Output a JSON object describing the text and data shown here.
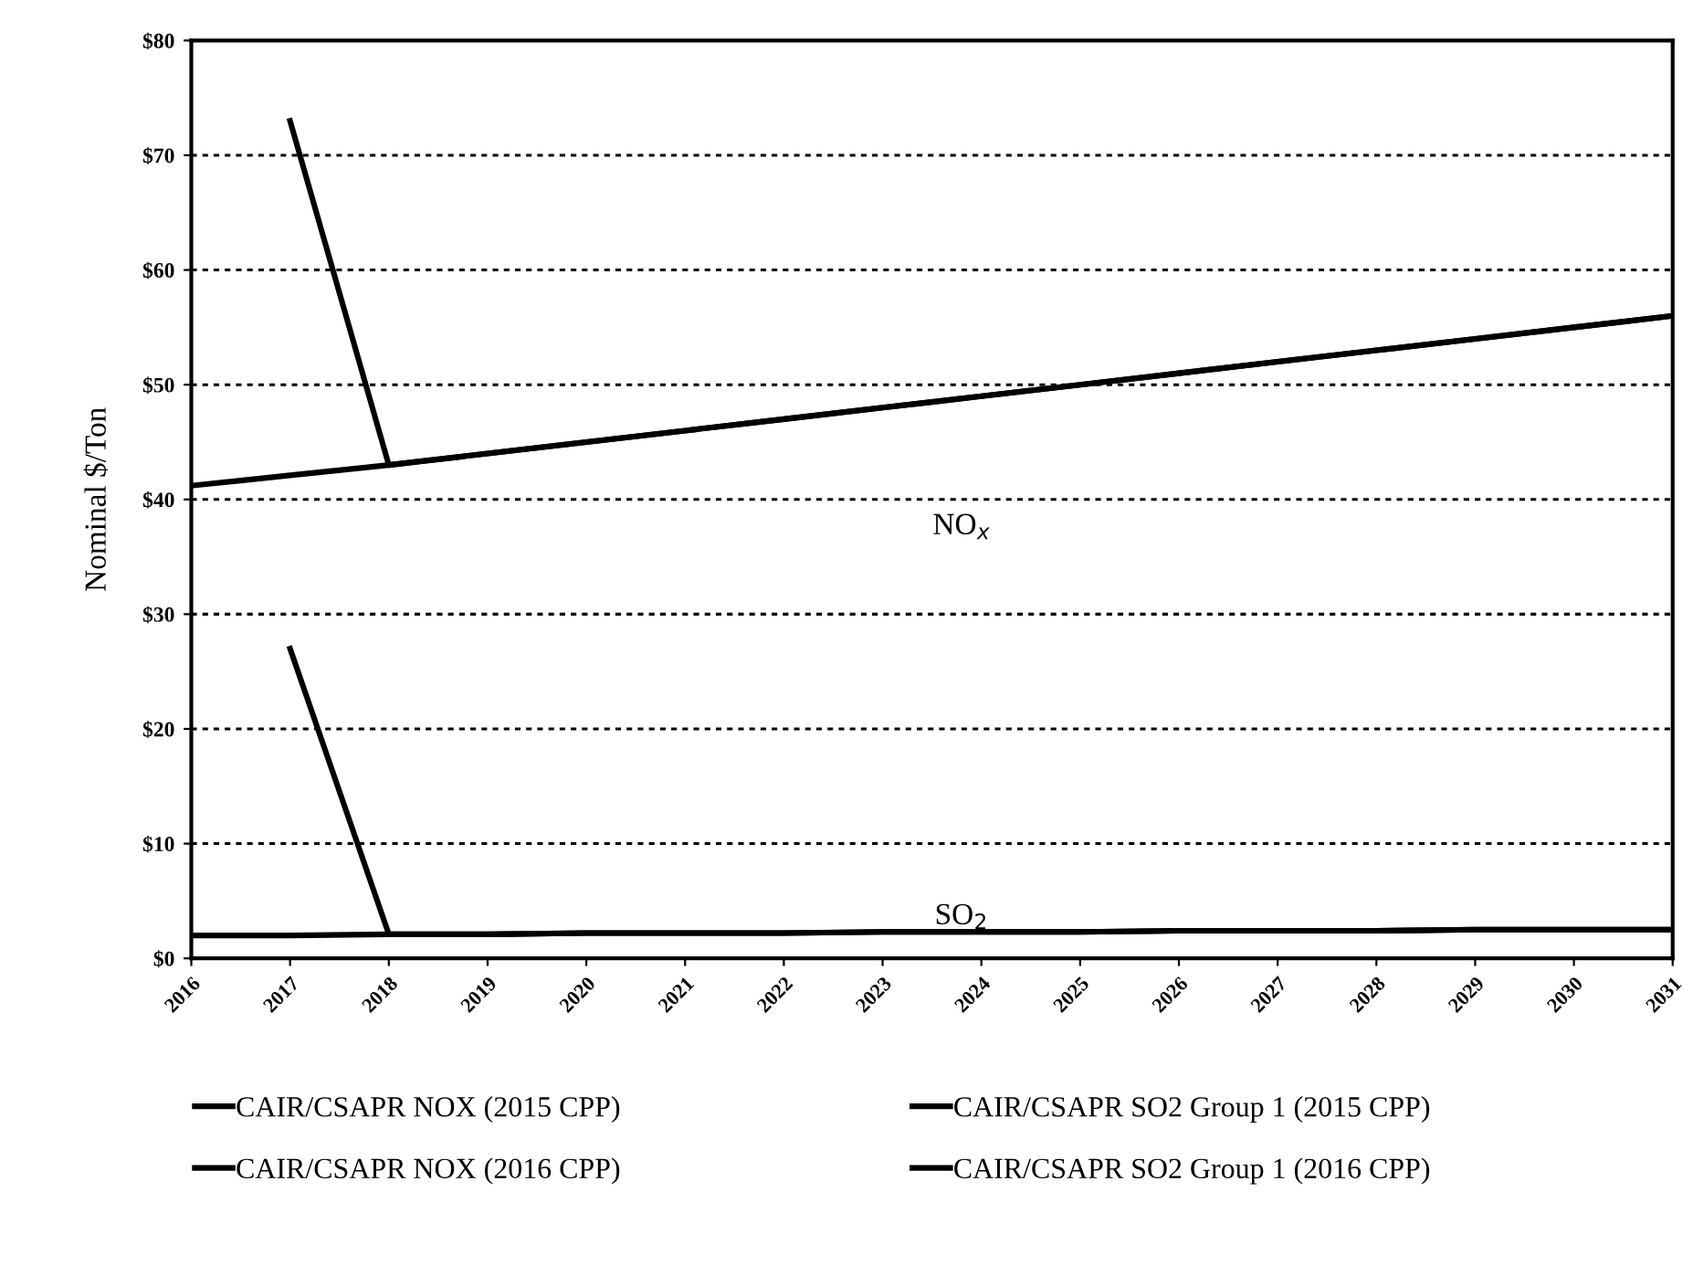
{
  "chart_data": {
    "type": "line",
    "ylabel": "Nominal $/Ton",
    "x": [
      2016,
      2017,
      2018,
      2019,
      2020,
      2021,
      2022,
      2023,
      2024,
      2025,
      2026,
      2027,
      2028,
      2029,
      2030,
      2031
    ],
    "series": [
      {
        "name": "CAIR/CSAPR NOX (2015 CPP)",
        "color": "#000000",
        "values": [
          41.2,
          42.1,
          43.0,
          44.0,
          45.0,
          46.0,
          47.0,
          48.0,
          49.0,
          50.0,
          51.0,
          52.0,
          53.0,
          54.0,
          55.0,
          56.0
        ]
      },
      {
        "name": "CAIR/CSAPR NOX (2016 CPP)",
        "color": "#000000",
        "values": [
          null,
          73.0,
          43.0,
          44.0,
          45.0,
          46.0,
          47.0,
          48.0,
          49.0,
          50.0,
          51.0,
          52.0,
          53.0,
          54.0,
          55.0,
          56.0
        ]
      },
      {
        "name": "CAIR/CSAPR SO2 Group 1 (2015 CPP)",
        "color": "#000000",
        "values": [
          2.0,
          2.0,
          2.1,
          2.1,
          2.2,
          2.2,
          2.2,
          2.3,
          2.3,
          2.3,
          2.4,
          2.4,
          2.4,
          2.5,
          2.5,
          2.5
        ]
      },
      {
        "name": "CAIR/CSAPR SO2 Group 1 (2016 CPP)",
        "color": "#000000",
        "values": [
          null,
          27.0,
          2.1,
          2.1,
          2.2,
          2.2,
          2.2,
          2.3,
          2.3,
          2.3,
          2.4,
          2.4,
          2.4,
          2.5,
          2.5,
          2.5
        ]
      }
    ],
    "xlim": [
      2016,
      2031
    ],
    "xticks": [
      2016,
      2017,
      2018,
      2019,
      2020,
      2021,
      2022,
      2023,
      2024,
      2025,
      2026,
      2027,
      2028,
      2029,
      2030,
      2031
    ],
    "ylim": [
      0,
      80
    ],
    "yticks": [
      {
        "value": 0,
        "label": "$0"
      },
      {
        "value": 10,
        "label": "$10"
      },
      {
        "value": 20,
        "label": "$20"
      },
      {
        "value": 30,
        "label": "$30"
      },
      {
        "value": 40,
        "label": "$40"
      },
      {
        "value": 50,
        "label": "$50"
      },
      {
        "value": 60,
        "label": "$60"
      },
      {
        "value": 70,
        "label": "$70"
      },
      {
        "value": 80,
        "label": "$80"
      }
    ],
    "annotations": [
      "NO$_{x}$",
      "SO$_{2}$"
    ],
    "grid": "y",
    "legend": "bottom",
    "marker": "none",
    "line_style": "solid"
  }
}
